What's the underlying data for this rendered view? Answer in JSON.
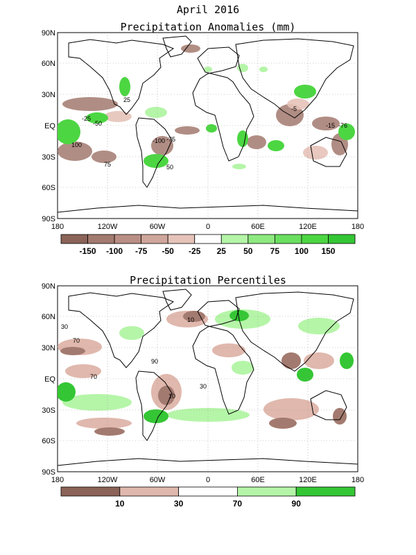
{
  "header": {
    "date_title": "April 2016",
    "panel1_title": "Precipitation Anomalies (mm)",
    "panel2_title": "Precipitation Percentiles"
  },
  "axes": {
    "lat_labels": [
      "90N",
      "60N",
      "30N",
      "EQ",
      "30S",
      "60S",
      "90S"
    ],
    "lon_labels": [
      "180",
      "120W",
      "60W",
      "0",
      "60E",
      "120E",
      "180"
    ]
  },
  "anomaly_colorbar": {
    "colors": [
      "#8b6358",
      "#a37a6f",
      "#b98e84",
      "#cfa69b",
      "#e6c3b9",
      "#ffffff",
      "#b5f5a8",
      "#8ee980",
      "#6adf60",
      "#4cd642",
      "#34c634"
    ],
    "labels": [
      "-150",
      "-100",
      "-75",
      "-50",
      "-25",
      "25",
      "50",
      "75",
      "100",
      "150"
    ]
  },
  "percentile_colorbar": {
    "colors": [
      "#8b6358",
      "#e0b8ad",
      "#ffffff",
      "#b5f5a8",
      "#34c634"
    ],
    "labels": [
      "10",
      "30",
      "70",
      "90"
    ]
  },
  "map_labels": {
    "anomaly_contours": [
      "25",
      "-25",
      "-50",
      "-75",
      "-100",
      "75",
      "100",
      "50",
      "-5",
      "-15",
      "-76"
    ],
    "percentile_contours": [
      "10",
      "30",
      "70",
      "90",
      "70",
      "30",
      "10"
    ]
  },
  "colors": {
    "land_outline": "#000000",
    "dry": "#a37a6f",
    "dry_light": "#e0b8ad",
    "wet_light": "#b5f5a8",
    "wet": "#34c634",
    "grid": "#999999"
  }
}
